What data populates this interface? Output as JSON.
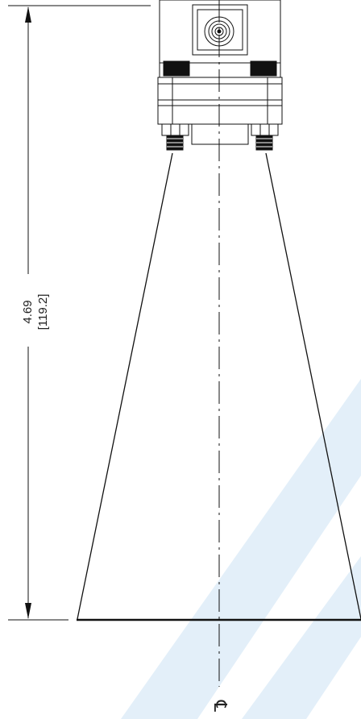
{
  "dimension": {
    "inches": "4.69",
    "millimeters": "[119.2]"
  },
  "centerline_symbol": "℄",
  "colors": {
    "line": "#111111",
    "watermark": "#e3eff9"
  },
  "icons": {
    "connector": "coax-connector-icon",
    "centerline": "centerline-symbol-icon"
  }
}
